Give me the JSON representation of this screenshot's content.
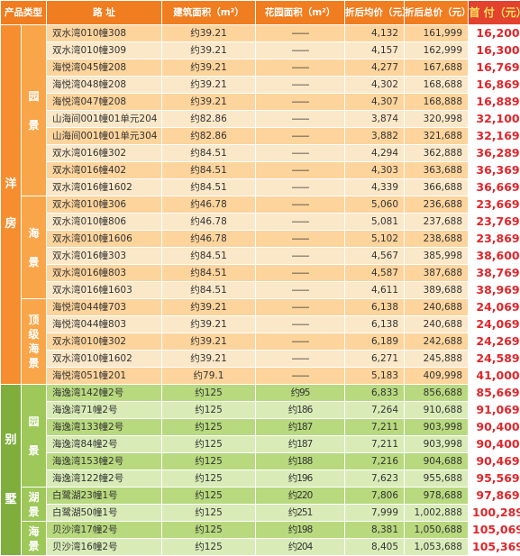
{
  "headers": {
    "type": "产品类型",
    "address": "路  址",
    "build_area": "建筑面积（m²）",
    "garden_area": "花园面积（m²）",
    "unit_price": "折后均价（元）",
    "total_price": "折后总价（元）",
    "down_payment": "首 付（元）"
  },
  "categories": {
    "yangfang": "洋\n\n房",
    "bieshu": "别\n\n\n墅"
  },
  "subcategories": {
    "yuanjing": "园\n\n景",
    "haijing": "海\n\n景",
    "dingji": "顶\n级\n海\n景",
    "b_yuanjing": "园\n\n景",
    "hujing": "湖\n景",
    "b_haijing": "海\n景"
  },
  "rows": [
    {
      "address": "双水湾010幢308",
      "build": "约39.21",
      "garden": "——",
      "unit": "4,132",
      "total": "161,999",
      "pay": "16,200"
    },
    {
      "address": "双水湾010幢309",
      "build": "约39.21",
      "garden": "——",
      "unit": "4,157",
      "total": "162,999",
      "pay": "16,300"
    },
    {
      "address": "海悦湾045幢208",
      "build": "约39.21",
      "garden": "——",
      "unit": "4,277",
      "total": "167,688",
      "pay": "16,769"
    },
    {
      "address": "海悦湾048幢208",
      "build": "约39.21",
      "garden": "——",
      "unit": "4,302",
      "total": "168,688",
      "pay": "16,869"
    },
    {
      "address": "海悦湾047幢208",
      "build": "约39.21",
      "garden": "——",
      "unit": "4,307",
      "total": "168,888",
      "pay": "16,889"
    },
    {
      "address": "山海间001幢01单元204",
      "build": "约82.86",
      "garden": "——",
      "unit": "3,874",
      "total": "320,998",
      "pay": "32,100"
    },
    {
      "address": "山海间001幢01单元304",
      "build": "约82.86",
      "garden": "——",
      "unit": "3,882",
      "total": "321,688",
      "pay": "32,169"
    },
    {
      "address": "双水湾016幢302",
      "build": "约84.51",
      "garden": "——",
      "unit": "4,294",
      "total": "362,888",
      "pay": "36,289"
    },
    {
      "address": "双水湾016幢402",
      "build": "约84.51",
      "garden": "——",
      "unit": "4,303",
      "total": "363,688",
      "pay": "36,369"
    },
    {
      "address": "双水湾016幢1602",
      "build": "约84.51",
      "garden": "——",
      "unit": "4,339",
      "total": "366,688",
      "pay": "36,669"
    },
    {
      "address": "双水湾010幢306",
      "build": "约46.78",
      "garden": "——",
      "unit": "5,060",
      "total": "236,688",
      "pay": "23,669"
    },
    {
      "address": "双水湾010幢806",
      "build": "约46.78",
      "garden": "——",
      "unit": "5,081",
      "total": "237,688",
      "pay": "23,769"
    },
    {
      "address": "双水湾010幢1606",
      "build": "约46.78",
      "garden": "——",
      "unit": "5,102",
      "total": "238,688",
      "pay": "23,869"
    },
    {
      "address": "双水湾016幢303",
      "build": "约84.51",
      "garden": "——",
      "unit": "4,567",
      "total": "385,998",
      "pay": "38,600"
    },
    {
      "address": "双水湾016幢803",
      "build": "约84.51",
      "garden": "——",
      "unit": "4,587",
      "total": "387,688",
      "pay": "38,769"
    },
    {
      "address": "双水湾016幢1603",
      "build": "约84.51",
      "garden": "——",
      "unit": "4,611",
      "total": "389,688",
      "pay": "38,969"
    },
    {
      "address": "海悦湾044幢703",
      "build": "约39.21",
      "garden": "——",
      "unit": "6,138",
      "total": "240,688",
      "pay": "24,069"
    },
    {
      "address": "海悦湾044幢803",
      "build": "约39.21",
      "garden": "——",
      "unit": "6,138",
      "total": "240,688",
      "pay": "24,069"
    },
    {
      "address": "双水湾010幢302",
      "build": "约39.21",
      "garden": "——",
      "unit": "6,189",
      "total": "242,688",
      "pay": "24,269"
    },
    {
      "address": "双水湾010幢1602",
      "build": "约39.21",
      "garden": "——",
      "unit": "6,271",
      "total": "245,888",
      "pay": "24,589"
    },
    {
      "address": "海悦湾051幢201",
      "build": "约79.1",
      "garden": "——",
      "unit": "5,183",
      "total": "409,998",
      "pay": "41,000"
    },
    {
      "address": "海逸湾142幢2号",
      "build": "约125",
      "garden": "约95",
      "unit": "6,833",
      "total": "856,688",
      "pay": "85,669"
    },
    {
      "address": "海逸湾71幢2号",
      "build": "约125",
      "garden": "约186",
      "unit": "7,264",
      "total": "910,688",
      "pay": "91,069"
    },
    {
      "address": "海逸湾133幢2号",
      "build": "约125",
      "garden": "约187",
      "unit": "7,211",
      "total": "903,998",
      "pay": "90,400"
    },
    {
      "address": "海逸湾84幢2号",
      "build": "约125",
      "garden": "约187",
      "unit": "7,211",
      "total": "903,998",
      "pay": "90,400"
    },
    {
      "address": "海逸湾153幢2号",
      "build": "约125",
      "garden": "约188",
      "unit": "7,216",
      "total": "904,688",
      "pay": "90,469"
    },
    {
      "address": "海逸湾122幢2号",
      "build": "约125",
      "garden": "约196",
      "unit": "7,623",
      "total": "955,688",
      "pay": "95,569"
    },
    {
      "address": "白鹭湖23幢1号",
      "build": "约125",
      "garden": "约220",
      "unit": "7,806",
      "total": "978,688",
      "pay": "97,869"
    },
    {
      "address": "白鹭湖50幢1号",
      "build": "约125",
      "garden": "约251",
      "unit": "7,999",
      "total": "1,002,888",
      "pay": "100,289"
    },
    {
      "address": "贝沙湾17幢2号",
      "build": "约125",
      "garden": "约198",
      "unit": "8,381",
      "total": "1,050,688",
      "pay": "105,069"
    },
    {
      "address": "贝沙湾16幢2号",
      "build": "约125",
      "garden": "约204",
      "unit": "8,405",
      "total": "1,053,688",
      "pay": "105,369"
    }
  ],
  "colors": {
    "header_orange": "#f07d1f",
    "header_red": "#e3422e",
    "down_payment_text": "#e0262b",
    "villa_green": "#7fae3d"
  }
}
